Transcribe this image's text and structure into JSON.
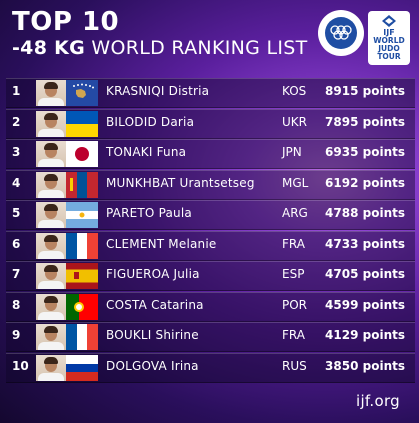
{
  "header": {
    "title": "TOP 10",
    "weight": "-48 KG",
    "subtitle": "WORLD RANKING LIST"
  },
  "logos": {
    "ijf_ring_text": "INTERNATIONAL JUDO FEDERATION",
    "tour_line1": "IJF",
    "tour_line2": "WORLD",
    "tour_line3": "JUDO",
    "tour_line4": "TOUR"
  },
  "rankings": [
    {
      "rank": "1",
      "name": "KRASNIQI Distria",
      "country": "KOS",
      "points": "8915 points",
      "flag": "kos"
    },
    {
      "rank": "2",
      "name": "BILODID Daria",
      "country": "UKR",
      "points": "7895 points",
      "flag": "ukr"
    },
    {
      "rank": "3",
      "name": "TONAKI Funa",
      "country": "JPN",
      "points": "6935 points",
      "flag": "jpn"
    },
    {
      "rank": "4",
      "name": "MUNKHBAT Urantsetseg",
      "country": "MGL",
      "points": "6192 points",
      "flag": "mgl"
    },
    {
      "rank": "5",
      "name": "PARETO Paula",
      "country": "ARG",
      "points": "4788 points",
      "flag": "arg"
    },
    {
      "rank": "6",
      "name": "CLEMENT Melanie",
      "country": "FRA",
      "points": "4733 points",
      "flag": "fra"
    },
    {
      "rank": "7",
      "name": "FIGUEROA Julia",
      "country": "ESP",
      "points": "4705 points",
      "flag": "esp"
    },
    {
      "rank": "8",
      "name": "COSTA Catarina",
      "country": "POR",
      "points": "4599 points",
      "flag": "por"
    },
    {
      "rank": "9",
      "name": "BOUKLI Shirine",
      "country": "FRA",
      "points": "4129 points",
      "flag": "fra"
    },
    {
      "rank": "10",
      "name": "DOLGOVA Irina",
      "country": "RUS",
      "points": "3850 points",
      "flag": "rus"
    }
  ],
  "footer": {
    "site": "ijf.org"
  },
  "colors": {
    "brand_blue": "#1f4ea3",
    "background_purple": "#5a1f9d"
  }
}
